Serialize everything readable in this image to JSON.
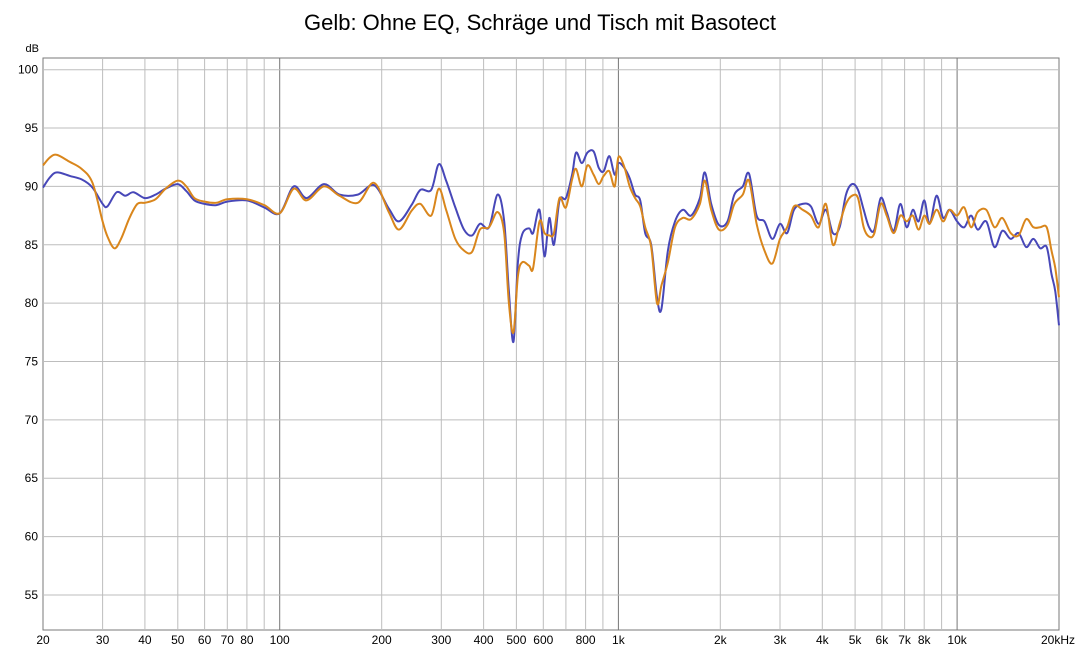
{
  "chart_data": {
    "type": "line",
    "title": "Gelb: Ohne EQ, Schräge und Tisch mit Basotect",
    "ylabel": "dB",
    "xscale": "log",
    "xlim": [
      20,
      20000
    ],
    "ylim": [
      52,
      101
    ],
    "grid": true,
    "y_ticks": [
      55,
      60,
      65,
      70,
      75,
      80,
      85,
      90,
      95,
      100
    ],
    "x_ticks": [
      {
        "value": 20,
        "label": "20"
      },
      {
        "value": 30,
        "label": "30"
      },
      {
        "value": 40,
        "label": "40"
      },
      {
        "value": 50,
        "label": "50"
      },
      {
        "value": 60,
        "label": "60"
      },
      {
        "value": 70,
        "label": "70"
      },
      {
        "value": 80,
        "label": "80"
      },
      {
        "value": 100,
        "label": "100"
      },
      {
        "value": 200,
        "label": "200"
      },
      {
        "value": 300,
        "label": "300"
      },
      {
        "value": 400,
        "label": "400"
      },
      {
        "value": 500,
        "label": "500"
      },
      {
        "value": 600,
        "label": "600"
      },
      {
        "value": 800,
        "label": "800"
      },
      {
        "value": 1000,
        "label": "1k"
      },
      {
        "value": 2000,
        "label": "2k"
      },
      {
        "value": 3000,
        "label": "3k"
      },
      {
        "value": 4000,
        "label": "4k"
      },
      {
        "value": 5000,
        "label": "5k"
      },
      {
        "value": 6000,
        "label": "6k"
      },
      {
        "value": 7000,
        "label": "7k"
      },
      {
        "value": 8000,
        "label": "8k"
      },
      {
        "value": 10000,
        "label": "10k"
      },
      {
        "value": 20000,
        "label": "20kHz"
      }
    ],
    "series": [
      {
        "color": "#4747b8",
        "points": [
          [
            20,
            89.9
          ],
          [
            21,
            90.8
          ],
          [
            22,
            91.2
          ],
          [
            24,
            90.9
          ],
          [
            26,
            90.6
          ],
          [
            28,
            89.9
          ],
          [
            30,
            88.5
          ],
          [
            31,
            88.3
          ],
          [
            33,
            89.5
          ],
          [
            35,
            89.2
          ],
          [
            37,
            89.5
          ],
          [
            40,
            89.0
          ],
          [
            43,
            89.3
          ],
          [
            46,
            89.8
          ],
          [
            50,
            90.2
          ],
          [
            53,
            89.6
          ],
          [
            56,
            88.8
          ],
          [
            60,
            88.5
          ],
          [
            65,
            88.4
          ],
          [
            70,
            88.7
          ],
          [
            80,
            88.8
          ],
          [
            90,
            88.2
          ],
          [
            100,
            87.7
          ],
          [
            110,
            90.0
          ],
          [
            120,
            89.0
          ],
          [
            135,
            90.2
          ],
          [
            150,
            89.3
          ],
          [
            170,
            89.3
          ],
          [
            190,
            90.1
          ],
          [
            210,
            88.1
          ],
          [
            225,
            87.0
          ],
          [
            245,
            88.4
          ],
          [
            260,
            89.7
          ],
          [
            280,
            89.7
          ],
          [
            295,
            91.9
          ],
          [
            310,
            90.5
          ],
          [
            330,
            88.2
          ],
          [
            350,
            86.3
          ],
          [
            370,
            85.8
          ],
          [
            390,
            86.8
          ],
          [
            415,
            86.5
          ],
          [
            440,
            89.3
          ],
          [
            460,
            87.0
          ],
          [
            475,
            81.0
          ],
          [
            490,
            76.7
          ],
          [
            505,
            83.5
          ],
          [
            520,
            85.9
          ],
          [
            545,
            86.4
          ],
          [
            560,
            86.0
          ],
          [
            585,
            88.0
          ],
          [
            605,
            84.0
          ],
          [
            625,
            87.3
          ],
          [
            645,
            85.0
          ],
          [
            670,
            88.8
          ],
          [
            700,
            89.0
          ],
          [
            730,
            91.0
          ],
          [
            750,
            92.9
          ],
          [
            780,
            92.0
          ],
          [
            810,
            92.9
          ],
          [
            845,
            93.0
          ],
          [
            875,
            91.6
          ],
          [
            905,
            91.3
          ],
          [
            940,
            92.6
          ],
          [
            975,
            91.0
          ],
          [
            1000,
            92.0
          ],
          [
            1040,
            91.6
          ],
          [
            1080,
            90.7
          ],
          [
            1120,
            89.3
          ],
          [
            1160,
            88.8
          ],
          [
            1200,
            86.0
          ],
          [
            1250,
            85.0
          ],
          [
            1300,
            80.5
          ],
          [
            1340,
            79.5
          ],
          [
            1400,
            84.5
          ],
          [
            1470,
            87.0
          ],
          [
            1550,
            88.0
          ],
          [
            1640,
            87.5
          ],
          [
            1740,
            89.0
          ],
          [
            1800,
            91.2
          ],
          [
            1880,
            88.5
          ],
          [
            1980,
            86.7
          ],
          [
            2100,
            87.0
          ],
          [
            2200,
            89.3
          ],
          [
            2330,
            90.0
          ],
          [
            2430,
            91.1
          ],
          [
            2560,
            87.5
          ],
          [
            2700,
            87.0
          ],
          [
            2850,
            85.5
          ],
          [
            3000,
            86.8
          ],
          [
            3150,
            86.0
          ],
          [
            3300,
            88.0
          ],
          [
            3500,
            88.5
          ],
          [
            3700,
            88.3
          ],
          [
            3900,
            86.8
          ],
          [
            4100,
            88.0
          ],
          [
            4300,
            86.0
          ],
          [
            4500,
            86.5
          ],
          [
            4700,
            89.3
          ],
          [
            4900,
            90.2
          ],
          [
            5100,
            89.7
          ],
          [
            5300,
            88.0
          ],
          [
            5500,
            86.5
          ],
          [
            5700,
            86.3
          ],
          [
            5950,
            89.0
          ],
          [
            6200,
            87.8
          ],
          [
            6500,
            86.2
          ],
          [
            6800,
            88.5
          ],
          [
            7100,
            86.5
          ],
          [
            7400,
            88.0
          ],
          [
            7700,
            87.0
          ],
          [
            8000,
            88.8
          ],
          [
            8300,
            86.8
          ],
          [
            8700,
            89.2
          ],
          [
            9100,
            87.3
          ],
          [
            9500,
            88.0
          ],
          [
            10000,
            87.0
          ],
          [
            10500,
            86.5
          ],
          [
            11000,
            87.5
          ],
          [
            11500,
            86.3
          ],
          [
            12200,
            87.0
          ],
          [
            12900,
            84.8
          ],
          [
            13600,
            86.2
          ],
          [
            14400,
            85.5
          ],
          [
            15200,
            86.0
          ],
          [
            16000,
            84.8
          ],
          [
            16800,
            85.5
          ],
          [
            17600,
            84.7
          ],
          [
            18400,
            84.8
          ],
          [
            19000,
            82.5
          ],
          [
            19500,
            81.0
          ],
          [
            20000,
            78.1
          ]
        ]
      },
      {
        "color": "#d9861c",
        "points": [
          [
            20,
            91.8
          ],
          [
            21,
            92.5
          ],
          [
            22,
            92.7
          ],
          [
            24,
            92.1
          ],
          [
            26,
            91.5
          ],
          [
            28,
            90.3
          ],
          [
            30,
            87.0
          ],
          [
            31,
            85.7
          ],
          [
            32.5,
            84.7
          ],
          [
            34,
            85.5
          ],
          [
            36,
            87.3
          ],
          [
            38,
            88.5
          ],
          [
            40,
            88.6
          ],
          [
            43,
            88.9
          ],
          [
            46,
            89.8
          ],
          [
            50,
            90.5
          ],
          [
            53,
            90.0
          ],
          [
            56,
            89.0
          ],
          [
            60,
            88.7
          ],
          [
            65,
            88.6
          ],
          [
            70,
            88.9
          ],
          [
            80,
            88.9
          ],
          [
            90,
            88.4
          ],
          [
            100,
            87.7
          ],
          [
            110,
            89.8
          ],
          [
            120,
            88.8
          ],
          [
            135,
            90.0
          ],
          [
            150,
            89.2
          ],
          [
            170,
            88.6
          ],
          [
            190,
            90.3
          ],
          [
            210,
            87.8
          ],
          [
            225,
            86.3
          ],
          [
            245,
            87.9
          ],
          [
            260,
            88.5
          ],
          [
            280,
            87.5
          ],
          [
            295,
            89.8
          ],
          [
            310,
            88.0
          ],
          [
            330,
            85.5
          ],
          [
            350,
            84.5
          ],
          [
            370,
            84.4
          ],
          [
            390,
            86.3
          ],
          [
            415,
            86.5
          ],
          [
            440,
            87.8
          ],
          [
            460,
            86.0
          ],
          [
            475,
            80.0
          ],
          [
            490,
            77.5
          ],
          [
            505,
            82.3
          ],
          [
            520,
            83.5
          ],
          [
            545,
            83.2
          ],
          [
            560,
            83.0
          ],
          [
            585,
            87.0
          ],
          [
            605,
            86.0
          ],
          [
            625,
            85.8
          ],
          [
            645,
            86.0
          ],
          [
            670,
            89.0
          ],
          [
            700,
            88.2
          ],
          [
            730,
            90.6
          ],
          [
            750,
            91.5
          ],
          [
            780,
            90.0
          ],
          [
            810,
            91.8
          ],
          [
            845,
            91.0
          ],
          [
            875,
            90.2
          ],
          [
            905,
            90.9
          ],
          [
            940,
            91.3
          ],
          [
            975,
            90.0
          ],
          [
            1000,
            92.5
          ],
          [
            1040,
            91.7
          ],
          [
            1080,
            90.0
          ],
          [
            1120,
            89.0
          ],
          [
            1160,
            88.3
          ],
          [
            1200,
            86.5
          ],
          [
            1250,
            84.8
          ],
          [
            1300,
            80.0
          ],
          [
            1340,
            81.5
          ],
          [
            1400,
            83.5
          ],
          [
            1470,
            86.5
          ],
          [
            1550,
            87.3
          ],
          [
            1640,
            87.2
          ],
          [
            1740,
            88.5
          ],
          [
            1800,
            90.5
          ],
          [
            1880,
            88.0
          ],
          [
            1980,
            86.3
          ],
          [
            2100,
            86.7
          ],
          [
            2200,
            88.5
          ],
          [
            2330,
            89.3
          ],
          [
            2430,
            90.5
          ],
          [
            2560,
            86.8
          ],
          [
            2700,
            84.5
          ],
          [
            2850,
            83.4
          ],
          [
            3000,
            85.5
          ],
          [
            3150,
            86.5
          ],
          [
            3300,
            88.3
          ],
          [
            3500,
            88.0
          ],
          [
            3700,
            87.5
          ],
          [
            3900,
            86.5
          ],
          [
            4100,
            88.5
          ],
          [
            4300,
            85.0
          ],
          [
            4500,
            86.8
          ],
          [
            4700,
            88.5
          ],
          [
            4900,
            89.2
          ],
          [
            5100,
            89.0
          ],
          [
            5300,
            86.5
          ],
          [
            5500,
            85.7
          ],
          [
            5700,
            86.0
          ],
          [
            5950,
            88.5
          ],
          [
            6200,
            87.5
          ],
          [
            6500,
            86.0
          ],
          [
            6800,
            87.5
          ],
          [
            7100,
            87.0
          ],
          [
            7400,
            87.5
          ],
          [
            7700,
            86.3
          ],
          [
            8000,
            87.5
          ],
          [
            8300,
            86.8
          ],
          [
            8700,
            88.0
          ],
          [
            9100,
            87.0
          ],
          [
            9500,
            88.0
          ],
          [
            10000,
            87.5
          ],
          [
            10500,
            88.2
          ],
          [
            11000,
            86.5
          ],
          [
            11500,
            87.8
          ],
          [
            12200,
            88.0
          ],
          [
            12900,
            86.5
          ],
          [
            13600,
            87.3
          ],
          [
            14400,
            86.0
          ],
          [
            15200,
            85.8
          ],
          [
            16000,
            87.2
          ],
          [
            16800,
            86.5
          ],
          [
            17600,
            86.5
          ],
          [
            18400,
            86.5
          ],
          [
            19000,
            84.5
          ],
          [
            19500,
            83.0
          ],
          [
            20000,
            80.5
          ]
        ]
      }
    ]
  }
}
